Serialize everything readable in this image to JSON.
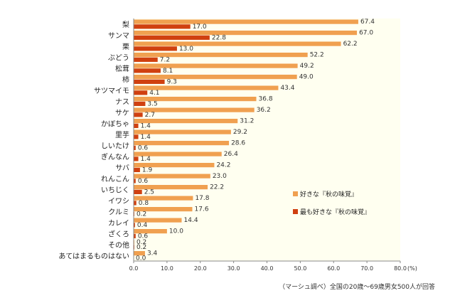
{
  "chart_data": {
    "type": "bar",
    "orientation": "horizontal",
    "categories": [
      "梨",
      "サンマ",
      "栗",
      "ぶどう",
      "松茸",
      "柿",
      "サツマイモ",
      "ナス",
      "サケ",
      "かぼちゃ",
      "里芋",
      "しいたけ",
      "ぎんなん",
      "サバ",
      "れんこん",
      "いちじく",
      "イワシ",
      "クルミ",
      "カレイ",
      "ざくろ",
      "その他",
      "あてはまるものはない"
    ],
    "series": [
      {
        "name": "好きな『秋の味覚』",
        "color": "#f0a050",
        "values": [
          67.4,
          67.0,
          62.2,
          52.2,
          49.2,
          49.0,
          43.4,
          36.8,
          36.2,
          31.2,
          29.2,
          28.6,
          26.4,
          24.2,
          23.0,
          22.2,
          17.8,
          17.6,
          14.4,
          10.0,
          0.2,
          3.4
        ],
        "labels": [
          "67.4",
          "67.0",
          "62.2",
          "52.2",
          "49.2",
          "49.0",
          "43.4",
          "36.8",
          "36.2",
          "31.2",
          "29.2",
          "28.6",
          "26.4",
          "24.2",
          "23.0",
          "22.2",
          "17.8",
          "17.6",
          "14.4",
          "10.0",
          "0.2",
          "3.4"
        ]
      },
      {
        "name": "最も好きな『秋の味覚』",
        "color": "#d04010",
        "values": [
          17.0,
          22.8,
          13.0,
          7.2,
          8.1,
          9.3,
          4.1,
          3.5,
          2.7,
          1.4,
          1.4,
          0.6,
          1.4,
          1.9,
          0.6,
          2.5,
          0.8,
          0.2,
          0.4,
          0.6,
          0.2,
          0.0
        ],
        "labels": [
          "17.0",
          "22.8",
          "13.0",
          "7.2",
          "8.1",
          "9.3",
          "4.1",
          "3.5",
          "2.7",
          "1.4",
          "1.4",
          "0.6",
          "1.4",
          "1.9",
          "0.6",
          "2.5",
          "0.8",
          "0.2",
          "0.4",
          "0.6",
          "0.2",
          "0.0"
        ]
      }
    ],
    "xlim": [
      0,
      80
    ],
    "xticks": [
      "0.0",
      "10.0",
      "20.0",
      "30.0",
      "40.0",
      "50.0",
      "60.0",
      "70.0",
      "80.0"
    ],
    "xunit": "(%)",
    "plot_bg": "#fffff0",
    "legend_position": "right-middle"
  },
  "footnote": "（マーシュ調べ）全国の20歳～69歳男女500人が回答"
}
